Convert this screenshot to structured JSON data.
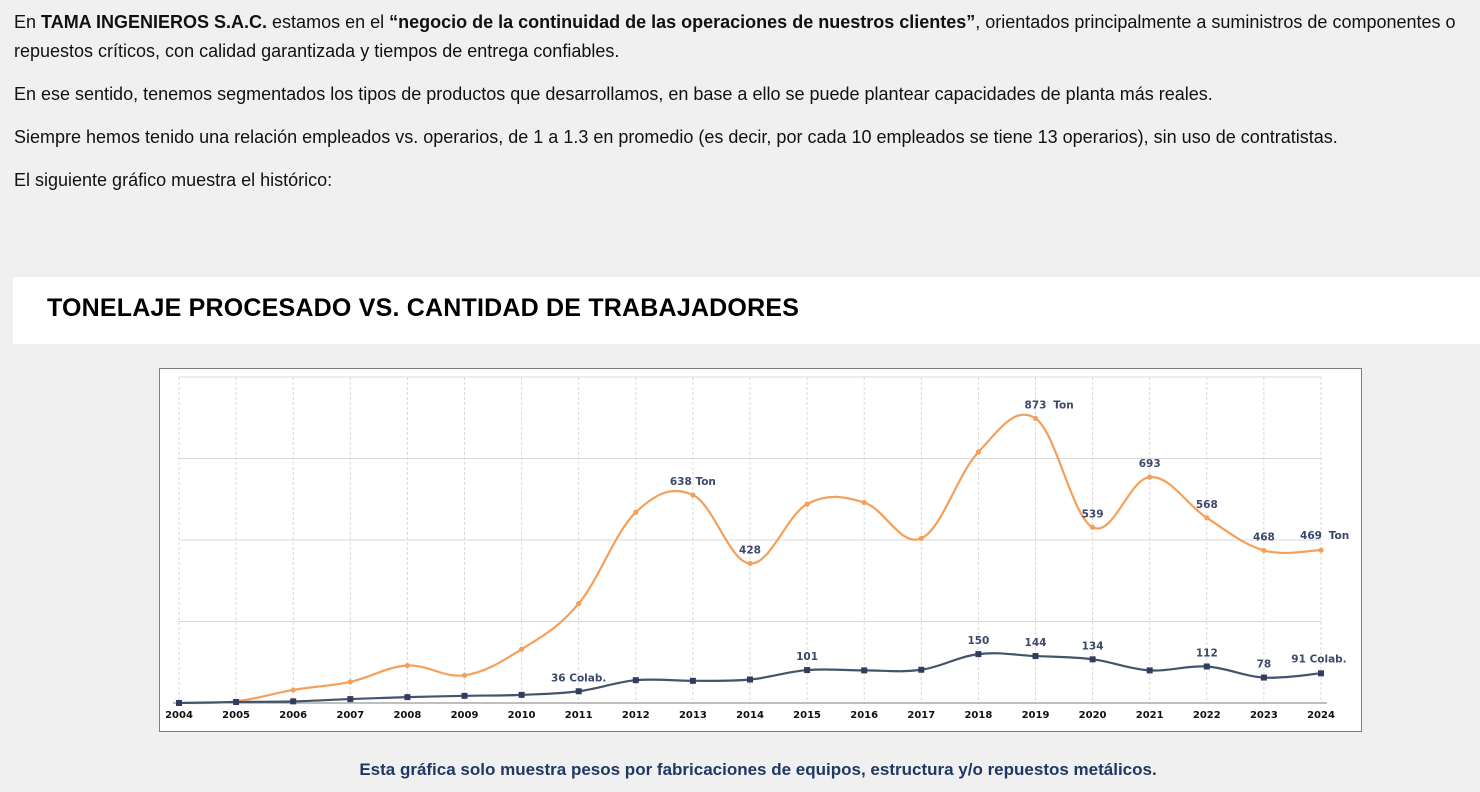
{
  "intro": {
    "p1": {
      "t1": "En ",
      "company": "TAMA INGENIEROS S.A.C.",
      "t2": " estamos en el ",
      "quote": "“negocio de la continuidad de las operaciones de nuestros clientes”",
      "t3": ", orientados principalmente a suministros de componentes o repuestos críticos, con calidad garantizada y tiempos de entrega confiables."
    },
    "p2": "En ese sentido, tenemos segmentados los tipos de productos que desarrollamos, en base a ello se puede plantear capacidades de planta más reales.",
    "p3": "Siempre hemos tenido una relación empleados vs. operarios, de 1 a 1.3 en promedio (es decir, por cada 10 empleados se tiene 13 operarios), sin uso de contratistas.",
    "p4": "El siguiente gráfico muestra el histórico:"
  },
  "section_title": "TONELAJE PROCESADO VS. CANTIDAD DE TRABAJADORES",
  "caption": "Esta gráfica solo muestra pesos por fabricaciones de equipos, estructura y/o repuestos metálicos.",
  "colors": {
    "ton_series": "#f4a05a",
    "workers_series": "#44546a",
    "caption": "#1f3864",
    "grid": "#d9d9d9"
  },
  "chart_data": {
    "type": "line",
    "title": "TONELAJE PROCESADO VS. CANTIDAD DE TRABAJADORES",
    "x": [
      "2004",
      "2005",
      "2006",
      "2007",
      "2008",
      "2009",
      "2010",
      "2011",
      "2012",
      "2013",
      "2014",
      "2015",
      "2016",
      "2017",
      "2018",
      "2019",
      "2020",
      "2021",
      "2022",
      "2023",
      "2024"
    ],
    "grid": true,
    "legend": "none",
    "series": [
      {
        "key": "ton",
        "values": [
          0,
          5,
          40,
          65,
          115,
          85,
          165,
          305,
          585,
          638,
          428,
          610,
          615,
          505,
          770,
          873,
          539,
          693,
          568,
          468,
          469
        ],
        "labels": {
          "2013": "638 Ton",
          "2014": "428",
          "2019": "873",
          "2020": "539",
          "2021": "693",
          "2022": "568",
          "2023": "468",
          "2024": "469"
        },
        "label_suffix_2019": "Ton",
        "label_suffix_2024": "Ton"
      },
      {
        "key": "workers",
        "values": [
          0,
          3,
          5,
          12,
          18,
          22,
          25,
          36,
          70,
          68,
          72,
          101,
          100,
          102,
          150,
          144,
          134,
          100,
          112,
          78,
          91
        ],
        "labels": {
          "2011": "36 Colab.",
          "2015": "101",
          "2018": "150",
          "2019": "144",
          "2020": "134",
          "2022": "112",
          "2023": "78",
          "2024": "91 Colab."
        }
      }
    ]
  }
}
